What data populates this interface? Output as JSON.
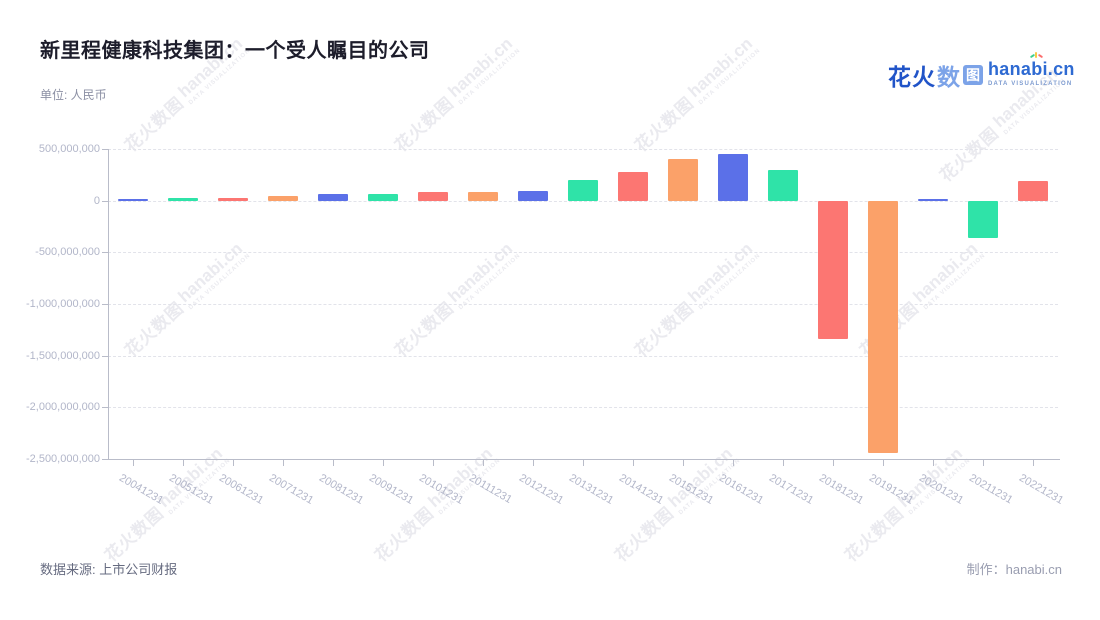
{
  "header": {
    "title": "新里程健康科技集团：一个受人瞩目的公司",
    "unit": "单位: 人民币"
  },
  "logo": {
    "brand_cn_bold": "花火",
    "brand_cn_light": "数",
    "brand_cn_box": "图",
    "brand_en": "hanabi.cn",
    "tagline": "DATA VISUALIZATION"
  },
  "watermark": {
    "cn": "花火数图",
    "en": "hanabi.cn",
    "tagline": "DATA VISUALIZATION"
  },
  "footer": {
    "source": "数据来源: 上市公司财报",
    "credit": "制作：hanabi.cn"
  },
  "chart_data": {
    "type": "bar",
    "title": "新里程健康科技集团：一个受人瞩目的公司",
    "unit_label": "单位: 人民币",
    "categories": [
      "20041231",
      "20051231",
      "20061231",
      "20071231",
      "20081231",
      "20091231",
      "20101231",
      "20111231",
      "20121231",
      "20131231",
      "20141231",
      "20151231",
      "20161231",
      "20171231",
      "20181231",
      "20191231",
      "20201231",
      "20211231",
      "20221231"
    ],
    "values": [
      20000000,
      28000000,
      30000000,
      42000000,
      60000000,
      62000000,
      80000000,
      82000000,
      90000000,
      200000000,
      280000000,
      400000000,
      450000000,
      300000000,
      -1340000000,
      -2440000000,
      12000000,
      -360000000,
      190000000
    ],
    "bar_color_cycle": [
      "#5B70E8",
      "#2FE3A8",
      "#FC7672",
      "#FBA169"
    ],
    "ylim": [
      -2500000000,
      500000000
    ],
    "yticks": [
      500000000,
      0,
      -500000000,
      -1000000000,
      -1500000000,
      -2000000000,
      -2500000000
    ],
    "ytick_labels": [
      "500,000,000",
      "0",
      "-500,000,000",
      "-1,000,000,000",
      "-1,500,000,000",
      "-2,000,000,000",
      "-2,500,000,000"
    ],
    "grid": "horizontal-dashed",
    "legend": "none",
    "xlabel_rotation_deg": 30
  }
}
